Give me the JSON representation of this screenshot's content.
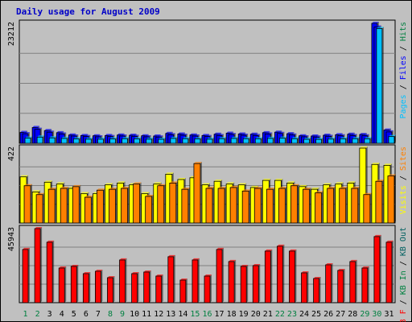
{
  "chart_data": {
    "type": "bar",
    "title": "Daily usage for August 2009",
    "days": [
      "1",
      "2",
      "3",
      "4",
      "5",
      "6",
      "7",
      "8",
      "9",
      "10",
      "11",
      "12",
      "13",
      "14",
      "15",
      "16",
      "17",
      "18",
      "19",
      "20",
      "21",
      "22",
      "23",
      "24",
      "25",
      "26",
      "27",
      "28",
      "29",
      "30",
      "31"
    ],
    "weekend_days": [
      "1",
      "2",
      "8",
      "9",
      "15",
      "16",
      "22",
      "23",
      "29",
      "30"
    ],
    "colors": {
      "pages": "#0000ff",
      "files": "#00c0ff",
      "hits": "#008040",
      "visits": "#ffff00",
      "sites": "#ff8000",
      "kb_in": "#008040",
      "kb_out": "#006060",
      "kb_f": "#ff0000",
      "weekend_label": "#008040",
      "weekday_label": "#000000"
    },
    "panels": [
      {
        "id": "hits",
        "ymax_label": "23212",
        "ymax": 23212,
        "legend": [
          {
            "text": "Pages",
            "color": "#00c0ff"
          },
          {
            "text": " / ",
            "color": "#000000"
          },
          {
            "text": "Files",
            "color": "#0000ff"
          },
          {
            "text": " / ",
            "color": "#000000"
          },
          {
            "text": "Hits",
            "color": "#008040"
          }
        ],
        "series": [
          {
            "name": "Hits",
            "color": "#0000ff",
            "values": [
              2100,
              3050,
              2450,
              2050,
              1600,
              1500,
              1450,
              1500,
              1600,
              1550,
              1450,
              1400,
              1900,
              1800,
              1600,
              1500,
              1750,
              1950,
              1800,
              1750,
              2050,
              2150,
              1850,
              1450,
              1400,
              1550,
              1650,
              1750,
              1700,
              23212,
              2550
            ]
          },
          {
            "name": "Files",
            "color": "#0000ff",
            "values": [
              1850,
              2700,
              2150,
              1800,
              1400,
              1300,
              1250,
              1300,
              1400,
              1350,
              1250,
              1200,
              1650,
              1550,
              1400,
              1300,
              1500,
              1700,
              1550,
              1500,
              1800,
              1900,
              1600,
              1250,
              1200,
              1350,
              1450,
              1500,
              1450,
              22500,
              2200
            ]
          },
          {
            "name": "Pages",
            "color": "#00c0ff",
            "values": [
              1000,
              1200,
              1050,
              950,
              850,
              800,
              800,
              850,
              900,
              850,
              800,
              780,
              950,
              900,
              850,
              800,
              900,
              950,
              900,
              880,
              950,
              1000,
              900,
              780,
              760,
              820,
              880,
              900,
              880,
              22212,
              1300
            ]
          }
        ]
      },
      {
        "id": "visits",
        "ymax_label": "422",
        "ymax": 422,
        "legend": [
          {
            "text": "Visits",
            "color": "#ffff00"
          },
          {
            "text": " / ",
            "color": "#000000"
          },
          {
            "text": "Sites",
            "color": "#ff8000"
          }
        ],
        "series": [
          {
            "name": "Visits",
            "color": "#ffff00",
            "values": [
              260,
              175,
              230,
              220,
              195,
              165,
              165,
              215,
              225,
              215,
              165,
              220,
              275,
              245,
              255,
              215,
              235,
              220,
              215,
              200,
              240,
              240,
              225,
              205,
              190,
              215,
              220,
              225,
              422,
              330,
              325
            ]
          },
          {
            "name": "Sites",
            "color": "#ff8000",
            "values": [
              210,
              160,
              190,
              195,
              205,
              145,
              185,
              190,
              195,
              220,
              150,
              210,
              225,
              190,
              335,
              195,
              195,
              200,
              180,
              195,
              190,
              195,
              210,
              190,
              170,
              195,
              195,
              195,
              160,
              235,
              265
            ]
          }
        ]
      },
      {
        "id": "kbytes",
        "ymax_label": "45943",
        "ymax": 45943,
        "legend": [
          {
            "text": "KB F",
            "color": "#ff0000"
          },
          {
            "text": " / ",
            "color": "#000000"
          },
          {
            "text": "KB In",
            "color": "#008040"
          },
          {
            "text": " / ",
            "color": "#000000"
          },
          {
            "text": "KB Out",
            "color": "#006060"
          }
        ],
        "series": [
          {
            "name": "KB F",
            "color": "#ff0000",
            "values": [
              33000,
              45943,
              37500,
              21500,
              22500,
              18000,
              19500,
              15500,
              26500,
              18000,
              19000,
              16500,
              28500,
              14000,
              26500,
              16500,
              33000,
              25500,
              22500,
              23000,
              32000,
              35000,
              32000,
              18500,
              15000,
              23500,
              20000,
              25500,
              21500,
              41000,
              37500
            ]
          }
        ]
      }
    ]
  }
}
